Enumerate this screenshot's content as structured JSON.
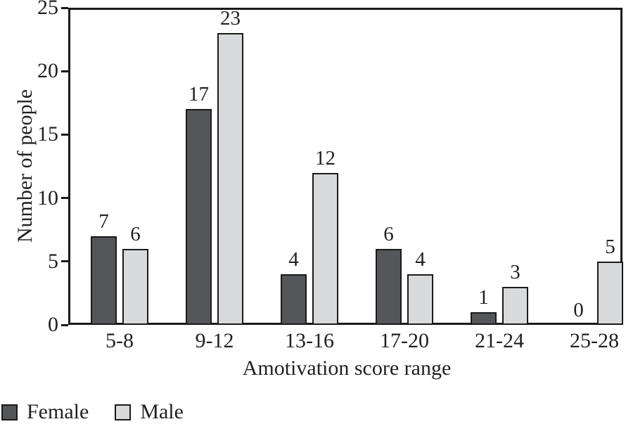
{
  "chart_data": {
    "type": "bar",
    "title": "",
    "xlabel": "Amotivation score range",
    "ylabel": "Number of people",
    "categories": [
      "5-8",
      "9-12",
      "13-16",
      "17-20",
      "21-24",
      "25-28"
    ],
    "series": [
      {
        "name": "Female",
        "color": "#55565a",
        "values": [
          7,
          17,
          4,
          6,
          1,
          0
        ]
      },
      {
        "name": "Male",
        "color": "#d9dadb",
        "values": [
          6,
          23,
          12,
          4,
          3,
          5
        ]
      }
    ],
    "ylim": [
      0,
      25
    ],
    "yticks": [
      0,
      5,
      10,
      15,
      20,
      25
    ],
    "grid": false,
    "bar_value_labels": true,
    "legend_position": "bottom-left"
  },
  "colors": {
    "axis": "#1a1a1a",
    "text": "#231f20",
    "background": "#ffffff"
  }
}
